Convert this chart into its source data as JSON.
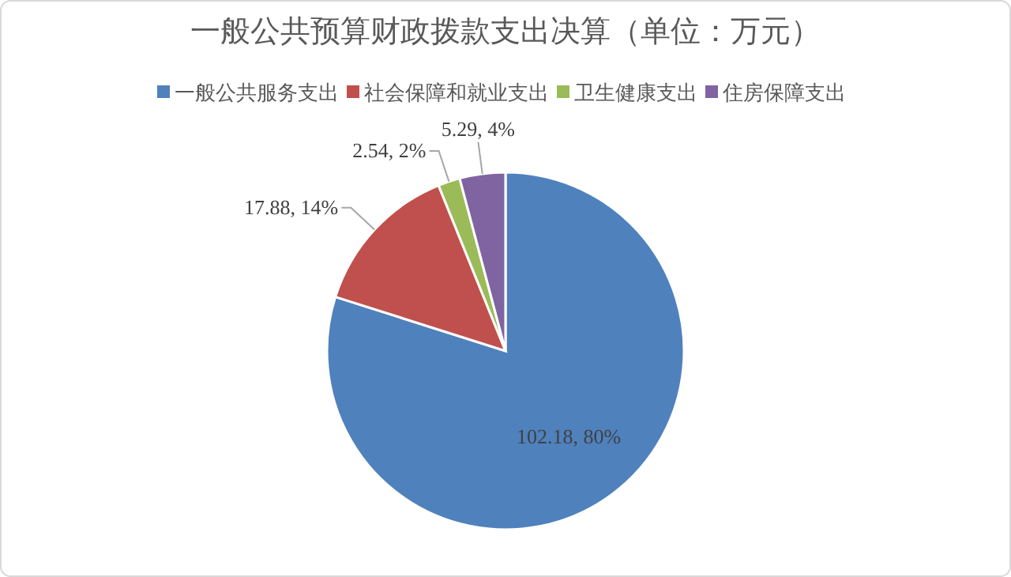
{
  "chart_data": {
    "type": "pie",
    "title": "一般公共预算财政拨款支出决算（单位：万元）",
    "categories": [
      "一般公共服务支出",
      "社会保障和就业支出",
      "卫生健康支出",
      "住房保障支出"
    ],
    "values": [
      102.18,
      17.88,
      2.54,
      5.29
    ],
    "colors": [
      "#4f81bd",
      "#c0504d",
      "#9bbb59",
      "#8064a2"
    ],
    "value_labels": [
      "102.18, 80%",
      "17.88, 14%",
      "2.54, 2%",
      "5.29, 4%"
    ],
    "legend": "top"
  }
}
